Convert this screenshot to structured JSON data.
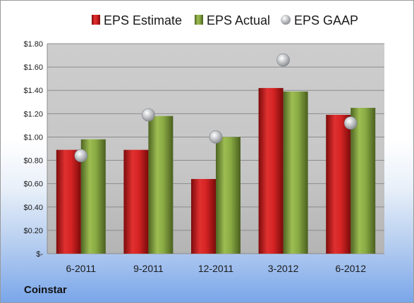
{
  "company": "Coinstar",
  "colors": {
    "estimate": "#c81e1e",
    "actual": "#7d9c3a",
    "gaap": "#b9bcc0",
    "plot_top": "#c9c9c9",
    "plot_bottom": "#bdbdbd"
  },
  "chart_data": {
    "type": "bar",
    "categories": [
      "6-2011",
      "9-2011",
      "12-2011",
      "3-2012",
      "6-2012"
    ],
    "series": [
      {
        "name": "EPS Estimate",
        "kind": "bar",
        "color": "#c81e1e",
        "values": [
          0.89,
          0.89,
          0.64,
          1.42,
          1.19
        ]
      },
      {
        "name": "EPS Actual",
        "kind": "bar",
        "color": "#7d9c3a",
        "values": [
          0.98,
          1.18,
          1.0,
          1.39,
          1.25
        ]
      },
      {
        "name": "EPS GAAP",
        "kind": "marker",
        "color": "#b9bcc0",
        "values": [
          0.84,
          1.19,
          1.0,
          1.66,
          1.12
        ]
      }
    ],
    "y_ticks": [
      {
        "value": 0,
        "label": "$-"
      },
      {
        "value": 0.2,
        "label": "$0.20"
      },
      {
        "value": 0.4,
        "label": "$0.40"
      },
      {
        "value": 0.6,
        "label": "$0.60"
      },
      {
        "value": 0.8,
        "label": "$0.80"
      },
      {
        "value": 1.0,
        "label": "$1.00"
      },
      {
        "value": 1.2,
        "label": "$1.20"
      },
      {
        "value": 1.4,
        "label": "$1.40"
      },
      {
        "value": 1.6,
        "label": "$1.60"
      },
      {
        "value": 1.8,
        "label": "$1.80"
      }
    ],
    "ylim": [
      0,
      1.8
    ],
    "grid": true,
    "legend_position": "top"
  }
}
